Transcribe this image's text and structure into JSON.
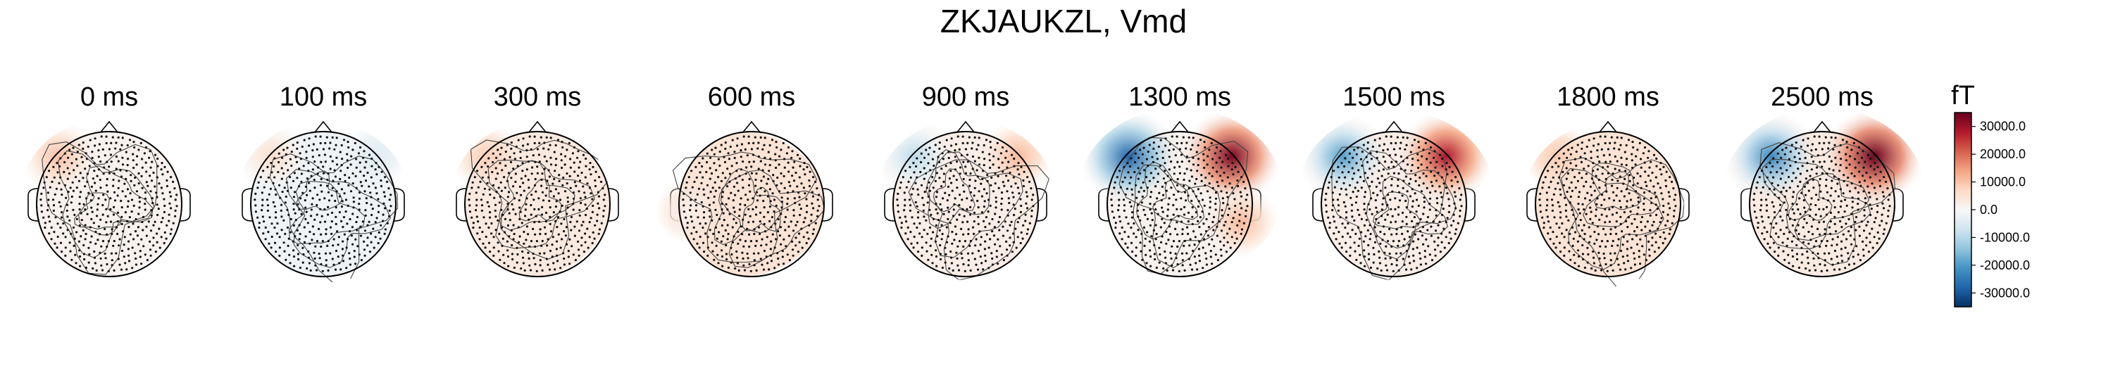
{
  "chart_data": {
    "type": "heatmap",
    "title": "ZKJAUKZL, Vmd",
    "panels": [
      {
        "label": "0 ms",
        "time_ms": 0,
        "blobs": [
          {
            "pos": "upper-left",
            "sign": 1,
            "amplitude": 9000
          }
        ],
        "baseline": 1500
      },
      {
        "label": "100 ms",
        "time_ms": 100,
        "blobs": [
          {
            "pos": "upper-left",
            "sign": 1,
            "amplitude": 8000
          },
          {
            "pos": "upper-right",
            "sign": -1,
            "amplitude": 3000
          }
        ],
        "baseline": -1500
      },
      {
        "label": "300 ms",
        "time_ms": 300,
        "blobs": [
          {
            "pos": "upper-left",
            "sign": 1,
            "amplitude": 5000
          }
        ],
        "baseline": 3500
      },
      {
        "label": "600 ms",
        "time_ms": 600,
        "blobs": [
          {
            "pos": "left",
            "sign": -1,
            "amplitude": 3000
          }
        ],
        "baseline": 5000
      },
      {
        "label": "900 ms",
        "time_ms": 900,
        "blobs": [
          {
            "pos": "upper-left",
            "sign": -1,
            "amplitude": 12000
          },
          {
            "pos": "upper-right",
            "sign": 1,
            "amplitude": 9000
          }
        ],
        "baseline": 2500
      },
      {
        "label": "1300 ms",
        "time_ms": 1300,
        "blobs": [
          {
            "pos": "upper-left",
            "sign": -1,
            "amplitude": 30000
          },
          {
            "pos": "upper-right",
            "sign": 1,
            "amplitude": 32000
          },
          {
            "pos": "right",
            "sign": 1,
            "amplitude": 10000
          }
        ],
        "baseline": 1500
      },
      {
        "label": "1500 ms",
        "time_ms": 1500,
        "blobs": [
          {
            "pos": "upper-left",
            "sign": -1,
            "amplitude": 22000
          },
          {
            "pos": "upper-right",
            "sign": 1,
            "amplitude": 26000
          }
        ],
        "baseline": 2500
      },
      {
        "label": "1800 ms",
        "time_ms": 1800,
        "blobs": [
          {
            "pos": "upper-left",
            "sign": 1,
            "amplitude": 4000
          }
        ],
        "baseline": 5000
      },
      {
        "label": "2500 ms",
        "time_ms": 2500,
        "blobs": [
          {
            "pos": "upper-left",
            "sign": -1,
            "amplitude": 26000
          },
          {
            "pos": "upper-right",
            "sign": 1,
            "amplitude": 32000
          }
        ],
        "baseline": 3000
      }
    ],
    "colorbar": {
      "unit": "fT",
      "range": [
        -35000,
        35000
      ],
      "ticks": [
        30000,
        20000,
        10000,
        0,
        -10000,
        -20000,
        -30000
      ],
      "tick_labels": [
        "30000.0",
        "20000.0",
        "10000.0",
        "0.0",
        "-10000.0",
        "-20000.0",
        "-30000.0"
      ],
      "colormap": "RdBu_r",
      "color_stops": [
        "#053061",
        "#2166ac",
        "#4393c3",
        "#92c5de",
        "#d1e5f0",
        "#f7f7f7",
        "#fddbc7",
        "#f4a582",
        "#d6604d",
        "#b2182b",
        "#67001f"
      ]
    }
  }
}
